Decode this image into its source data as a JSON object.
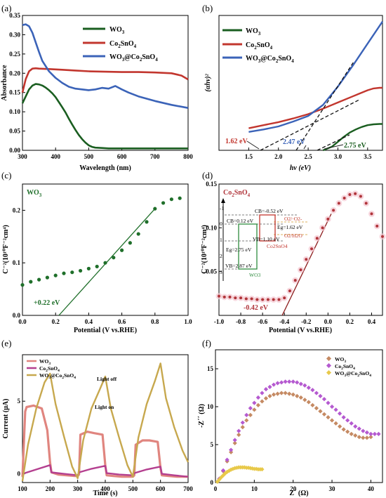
{
  "chart_data": [
    {
      "id": "a",
      "panel_label": "(a)",
      "type": "line",
      "xlabel": "Wavelength (nm)",
      "ylabel": "Absorbance",
      "xlim": [
        300,
        800
      ],
      "ylim": [
        0,
        0.35
      ],
      "xticks": [
        "300",
        "400",
        "500",
        "600",
        "700",
        "800"
      ],
      "yticks": [
        "0.00",
        "0.05",
        "0.10",
        "0.15",
        "0.20",
        "0.25",
        "0.30",
        "0.35"
      ],
      "legend_position": "top-right",
      "series": [
        {
          "name": "WO3",
          "label_base": "WO",
          "label_sub": "3",
          "color": "#1a5e20",
          "x": [
            300,
            310,
            320,
            330,
            340,
            350,
            360,
            370,
            380,
            390,
            400,
            410,
            420,
            430,
            440,
            450,
            460,
            470,
            480,
            490,
            500,
            510,
            520,
            540,
            560,
            600,
            650,
            700,
            800
          ],
          "y": [
            0.122,
            0.14,
            0.158,
            0.168,
            0.172,
            0.171,
            0.168,
            0.163,
            0.156,
            0.148,
            0.138,
            0.125,
            0.112,
            0.098,
            0.082,
            0.067,
            0.053,
            0.04,
            0.029,
            0.02,
            0.013,
            0.009,
            0.007,
            0.006,
            0.005,
            0.005,
            0.005,
            0.005,
            0.005
          ]
        },
        {
          "name": "Co2SnO4",
          "label_base": "Co",
          "label_sub": "2",
          "label_rest": "SnO",
          "label_sub2": "4",
          "color": "#c2362e",
          "x": [
            300,
            310,
            320,
            330,
            340,
            350,
            380,
            420,
            460,
            500,
            550,
            600,
            650,
            700,
            750,
            780,
            800
          ],
          "y": [
            0.15,
            0.185,
            0.205,
            0.212,
            0.213,
            0.212,
            0.211,
            0.209,
            0.207,
            0.205,
            0.204,
            0.203,
            0.203,
            0.202,
            0.2,
            0.194,
            0.184
          ]
        },
        {
          "name": "WO3@Co2SnO4",
          "label": "WO3@Co2SnO4",
          "color": "#3b63b8",
          "x": [
            300,
            310,
            320,
            330,
            340,
            350,
            360,
            380,
            400,
            420,
            440,
            460,
            480,
            500,
            520,
            540,
            560,
            580,
            600,
            620,
            650,
            700,
            750,
            800
          ],
          "y": [
            0.325,
            0.327,
            0.322,
            0.305,
            0.28,
            0.255,
            0.232,
            0.205,
            0.188,
            0.175,
            0.165,
            0.16,
            0.158,
            0.156,
            0.158,
            0.162,
            0.16,
            0.167,
            0.158,
            0.15,
            0.14,
            0.128,
            0.118,
            0.11
          ]
        }
      ]
    },
    {
      "id": "b",
      "panel_label": "(b)",
      "type": "line",
      "xlabel": "hν (eV)",
      "ylabel": "(αhν)²",
      "xlim": [
        1.0,
        3.75
      ],
      "xticks": [
        "1.5",
        "2.0",
        "2.5",
        "3.0",
        "3.5"
      ],
      "legend_position": "top-left",
      "series": [
        {
          "name": "WO3",
          "color": "#1a5e20",
          "x": [
            2.75,
            2.9,
            3.0,
            3.1,
            3.2,
            3.3,
            3.4,
            3.5,
            3.6,
            3.7,
            3.75
          ],
          "y": [
            0.0,
            0.03,
            0.07,
            0.11,
            0.145,
            0.17,
            0.19,
            0.205,
            0.212,
            0.215,
            0.215
          ]
        },
        {
          "name": "Co2SnO4",
          "color": "#c2362e",
          "x": [
            1.5,
            1.75,
            2.0,
            2.25,
            2.5,
            2.75,
            3.0,
            3.25,
            3.5,
            3.6,
            3.7,
            3.75
          ],
          "y": [
            0.18,
            0.205,
            0.23,
            0.26,
            0.295,
            0.34,
            0.39,
            0.44,
            0.49,
            0.505,
            0.51,
            0.51
          ]
        },
        {
          "name": "WO3@Co2SnO4",
          "color": "#3b63b8",
          "x": [
            1.5,
            1.75,
            2.0,
            2.25,
            2.5,
            2.75,
            3.0,
            3.25,
            3.5,
            3.75
          ],
          "y": [
            0.15,
            0.17,
            0.195,
            0.235,
            0.28,
            0.37,
            0.52,
            0.69,
            0.87,
            1.05
          ]
        }
      ],
      "annotations": [
        "1.62 eV",
        "2.47 eV",
        "2.75 eV"
      ]
    },
    {
      "id": "c",
      "panel_label": "(c)",
      "type": "scatter",
      "inset_label_base": "WO",
      "inset_label_sub": "3",
      "xlabel": "Potential (V vs.RHE)",
      "ylabel": "C⁻²(10¹⁰F⁻²cm⁴)",
      "xlim": [
        0.0,
        1.0
      ],
      "ylim": [
        0.0,
        0.25
      ],
      "xticks": [
        "0.0",
        "0.2",
        "0.4",
        "0.6",
        "0.8",
        "1.0"
      ],
      "yticks": [
        "0.0",
        "0.1",
        "0.2"
      ],
      "color": "#1f6f2a",
      "x": [
        0.0,
        0.05,
        0.1,
        0.15,
        0.2,
        0.25,
        0.3,
        0.35,
        0.4,
        0.45,
        0.5,
        0.55,
        0.6,
        0.65,
        0.7,
        0.75,
        0.8,
        0.85,
        0.9,
        0.95
      ],
      "y": [
        0.058,
        0.064,
        0.068,
        0.072,
        0.076,
        0.08,
        0.082,
        0.085,
        0.089,
        0.093,
        0.1,
        0.11,
        0.124,
        0.138,
        0.155,
        0.178,
        0.203,
        0.214,
        0.221,
        0.223
      ],
      "fit_line": {
        "x": [
          0.22,
          0.8
        ],
        "y": [
          0.0,
          0.203
        ]
      },
      "annotation": "+0.22 eV"
    },
    {
      "id": "d",
      "panel_label": "(d)",
      "type": "scatter",
      "inset_label_base": "Co",
      "inset_label_sub": "2",
      "inset_label_rest": "SnO",
      "inset_label_sub2": "4",
      "xlabel": "Potential (V vs.RHE)",
      "ylabel": "C⁻²(10¹⁰F⁻²cm⁴)",
      "xlim": [
        -1.0,
        0.5
      ],
      "ylim": [
        0.0,
        0.15
      ],
      "xticks": [
        "-1.0",
        "-0.8",
        "-0.6",
        "-0.4",
        "-0.2",
        "0.0",
        "0.2",
        "0.4"
      ],
      "yticks": [
        "0.05",
        "0.10",
        "0.15"
      ],
      "color": "#b0343a",
      "x": [
        -1.0,
        -0.95,
        -0.9,
        -0.85,
        -0.8,
        -0.75,
        -0.7,
        -0.65,
        -0.6,
        -0.55,
        -0.5,
        -0.45,
        -0.4,
        -0.35,
        -0.3,
        -0.25,
        -0.2,
        -0.15,
        -0.1,
        -0.05,
        0.0,
        0.05,
        0.1,
        0.15,
        0.2,
        0.25,
        0.3,
        0.35,
        0.4,
        0.45,
        0.5
      ],
      "y": [
        0.022,
        0.021,
        0.021,
        0.02,
        0.02,
        0.019,
        0.019,
        0.018,
        0.018,
        0.018,
        0.018,
        0.018,
        0.02,
        0.028,
        0.04,
        0.052,
        0.064,
        0.076,
        0.088,
        0.1,
        0.11,
        0.12,
        0.128,
        0.134,
        0.138,
        0.139,
        0.136,
        0.128,
        0.116,
        0.102,
        0.09
      ],
      "fit_line": {
        "x": [
          -0.42,
          0.03
        ],
        "y": [
          0.0,
          0.116
        ]
      },
      "annotation": "-0.42 eV",
      "band_diagram": {
        "axis_ticks": [
          "-1",
          "0",
          "1",
          "2",
          "3"
        ],
        "labels": [
          "CB=-0.52 eV",
          "CB=0.12 eV",
          "VB=1.10 eV",
          "Eg=1.62 eV",
          "Eg=2.75 eV",
          "VB=2.87 eV",
          "O2/·O2-",
          "O2/H2O",
          "Co2SnO4",
          "WO3"
        ]
      }
    },
    {
      "id": "e",
      "panel_label": "(e)",
      "type": "line",
      "xlabel": "Time (s)",
      "ylabel": "Current  (μA)",
      "xlim": [
        100,
        700
      ],
      "ylim": [
        -0.6,
        8.2
      ],
      "xticks": [
        "100",
        "200",
        "300",
        "400",
        "500",
        "600",
        "700"
      ],
      "yticks": [
        "0",
        "5"
      ],
      "legend_position": "top-left",
      "annotations": [
        "Light on",
        "Light off"
      ],
      "series": [
        {
          "name": "WO3",
          "color": "#e0857f",
          "x": [
            100,
            110,
            115,
            140,
            170,
            190,
            200,
            205,
            230,
            260,
            290,
            300,
            305,
            310,
            335,
            360,
            390,
            400,
            405,
            430,
            460,
            490,
            500,
            505,
            510,
            535,
            560,
            590,
            600,
            605,
            630,
            660,
            700
          ],
          "y": [
            -0.2,
            4.3,
            4.6,
            4.7,
            4.5,
            3.0,
            0.8,
            0.1,
            -0.05,
            -0.1,
            -0.15,
            -0.15,
            -0.05,
            2.7,
            2.9,
            2.8,
            2.7,
            0.6,
            -0.1,
            -0.15,
            -0.2,
            -0.2,
            -0.2,
            -0.1,
            2.0,
            2.3,
            2.3,
            2.2,
            0.4,
            -0.1,
            -0.15,
            -0.2,
            -0.2
          ]
        },
        {
          "name": "Co2SnO4",
          "color": "#b43f8f",
          "x": [
            100,
            150,
            200,
            205,
            250,
            300,
            305,
            350,
            400,
            405,
            450,
            500,
            505,
            550,
            600,
            605,
            650,
            700
          ],
          "y": [
            0.0,
            0.3,
            0.6,
            0.1,
            0.0,
            -0.1,
            0.1,
            0.35,
            0.55,
            0.05,
            -0.05,
            -0.1,
            0.05,
            0.3,
            0.5,
            0.0,
            -0.1,
            -0.2
          ]
        },
        {
          "name": "WO3@Co2SnO4",
          "color": "#c7a84e",
          "x": [
            100,
            120,
            150,
            180,
            200,
            220,
            250,
            280,
            300,
            320,
            350,
            380,
            400,
            420,
            450,
            480,
            500,
            520,
            550,
            580,
            600,
            620,
            650,
            680,
            700
          ],
          "y": [
            -0.5,
            2.0,
            4.5,
            6.3,
            6.9,
            4.8,
            2.6,
            0.5,
            -0.3,
            2.3,
            4.5,
            5.8,
            6.7,
            4.5,
            2.5,
            0.6,
            -0.2,
            2.5,
            4.8,
            6.4,
            7.6,
            5.2,
            3.2,
            1.6,
            0.8
          ]
        }
      ]
    },
    {
      "id": "f",
      "panel_label": "(f)",
      "type": "scatter",
      "xlabel": "Z΄ (Ω)",
      "ylabel": "-Z΄΄ (Ω)",
      "xlim": [
        0,
        43
      ],
      "ylim": [
        0,
        17.5
      ],
      "xticks": [
        "0",
        "10",
        "20",
        "30",
        "40"
      ],
      "yticks": [
        "0",
        "5",
        "10",
        "15"
      ],
      "legend_position": "top-right",
      "series": [
        {
          "name": "WO3",
          "color": "#c58a63",
          "x": [
            1,
            2,
            3,
            4,
            5,
            6,
            7,
            8,
            9,
            10,
            11,
            12,
            13,
            14,
            15,
            16,
            17,
            18,
            19,
            20,
            21,
            22,
            23,
            24,
            25,
            26,
            27,
            28,
            29,
            30,
            31,
            32,
            33,
            34,
            35,
            36,
            37,
            38,
            39,
            40
          ],
          "y": [
            0.5,
            1.5,
            2.8,
            4.0,
            5.2,
            6.3,
            7.3,
            8.2,
            8.9,
            9.6,
            10.2,
            10.7,
            11.1,
            11.4,
            11.6,
            11.7,
            11.8,
            11.8,
            11.7,
            11.6,
            11.4,
            11.2,
            10.9,
            10.6,
            10.2,
            9.8,
            9.4,
            9.0,
            8.6,
            8.2,
            7.8,
            7.4,
            7.0,
            6.7,
            6.4,
            6.2,
            6.0,
            5.9,
            5.9,
            6.0
          ]
        },
        {
          "name": "Co2SnO4",
          "color": "#b55ad0",
          "x": [
            1,
            2,
            3,
            4,
            5,
            6,
            7,
            8,
            9,
            10,
            11,
            12,
            13,
            14,
            15,
            16,
            17,
            18,
            19,
            20,
            21,
            22,
            23,
            24,
            25,
            26,
            27,
            28,
            29,
            30,
            31,
            32,
            33,
            34,
            35,
            36,
            37,
            38,
            39,
            40,
            41,
            42
          ],
          "y": [
            0.5,
            1.6,
            3.0,
            4.3,
            5.6,
            6.8,
            7.9,
            8.9,
            9.8,
            10.5,
            11.2,
            11.8,
            12.3,
            12.6,
            12.9,
            13.1,
            13.2,
            13.3,
            13.3,
            13.3,
            13.2,
            13.0,
            12.8,
            12.5,
            12.2,
            11.8,
            11.4,
            11.0,
            10.5,
            10.0,
            9.6,
            9.1,
            8.6,
            8.2,
            7.8,
            7.4,
            7.1,
            6.8,
            6.6,
            6.4,
            6.4,
            6.4
          ]
        },
        {
          "name": "WO3@Co2SnO4",
          "color": "#e8c94a",
          "x": [
            0.5,
            1,
            1.5,
            2,
            2.5,
            3,
            3.5,
            4,
            4.5,
            5,
            5.5,
            6,
            6.5,
            7,
            7.5,
            8,
            8.5,
            9,
            9.5,
            10,
            10.5,
            11,
            11.5,
            12
          ],
          "y": [
            0.1,
            0.4,
            0.7,
            0.95,
            1.2,
            1.4,
            1.55,
            1.7,
            1.8,
            1.9,
            1.95,
            2.0,
            2.0,
            2.0,
            2.0,
            1.95,
            1.95,
            1.9,
            1.85,
            1.8,
            1.8,
            1.75,
            1.75,
            1.75
          ]
        }
      ]
    }
  ]
}
